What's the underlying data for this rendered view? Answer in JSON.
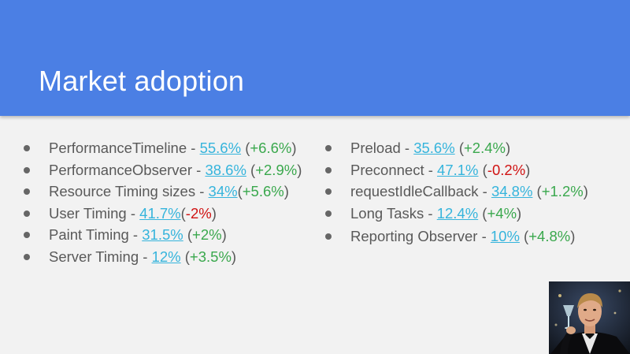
{
  "slide": {
    "title": "Market adoption"
  },
  "left_items": [
    {
      "name": "PerformanceTimeline",
      "sep": " - ",
      "pct": "55.6%",
      "pre": " (",
      "delta": "+6.6%",
      "post": ")",
      "dir": "up"
    },
    {
      "name": "PerformanceObserver",
      "sep": " - ",
      "pct": "38.6%",
      "pre": " (",
      "delta": "+2.9%",
      "post": ")",
      "dir": "up"
    },
    {
      "name": "Resource Timing sizes",
      "sep": " - ",
      "pct": "34%",
      "pre": "(",
      "delta": "+5.6%",
      "post": ")",
      "dir": "up"
    },
    {
      "name": "User Timing",
      "sep": " - ",
      "pct": "41.7%",
      "pre": "(",
      "delta": "-2%",
      "post": ")",
      "dir": "down"
    },
    {
      "name": "Paint Timing",
      "sep": " - ",
      "pct": "31.5%",
      "pre": " (",
      "delta": "+2%",
      "post": ")",
      "dir": "up"
    },
    {
      "name": "Server Timing",
      "sep": " - ",
      "pct": "12%",
      "pre": " (",
      "delta": "+3.5%",
      "post": ")",
      "dir": "up"
    }
  ],
  "right_items": [
    {
      "name": "Preload",
      "sep": " - ",
      "pct": "35.6%",
      "pre": " (",
      "delta": "+2.4%",
      "post": ")",
      "dir": "up"
    },
    {
      "name": "Preconnect",
      "sep": " - ",
      "pct": "47.1%",
      "pre": " (",
      "delta": "-0.2%",
      "post": ")",
      "dir": "down"
    },
    {
      "name": "requestIdleCallback",
      "sep": " - ",
      "pct": "34.8%",
      "pre": " (",
      "delta": "+1.2%",
      "post": ")",
      "dir": "up"
    },
    {
      "name": "Long Tasks",
      "sep": " - ",
      "pct": "12.4%",
      "pre": " (",
      "delta": "+4%",
      "post": ")",
      "dir": "up"
    },
    {
      "name": "Reporting Observer",
      "sep": " - ",
      "pct": "10%",
      "pre": " (",
      "delta": "+4.8%",
      "post": ")",
      "dir": "up"
    }
  ],
  "colors": {
    "header": "#4b7fe4",
    "link": "#35b4dc",
    "increase": "#3aa84d",
    "decrease": "#d01212"
  },
  "photo": {
    "icon": "toasting-man-photo"
  }
}
